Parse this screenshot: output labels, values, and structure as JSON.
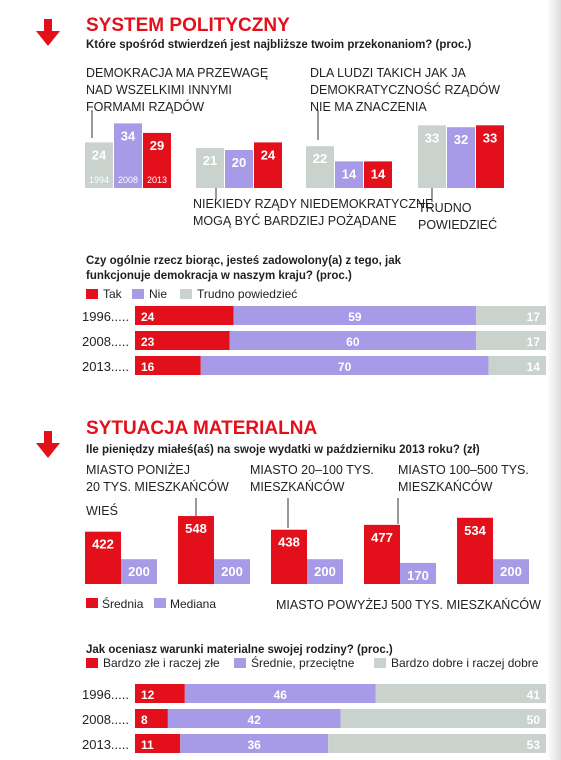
{
  "colors": {
    "red": "#e3101b",
    "purple": "#a79ae6",
    "grey": "#c9d2cd",
    "dark": "#222222"
  },
  "section1": {
    "title": "SYSTEM POLITYCZNY",
    "question": "Które spośród stwierdzeń jest najbliższe twoim przekonaniom? (proc.)",
    "group_labels": [
      [
        "DEMOKRACJA MA PRZEWAGĘ",
        "NAD WSZELKIMI INNYMI",
        "FORMAMI RZĄDÓW"
      ],
      [
        "NIEKIEDY RZĄDY NIEDEMOKRATYCZNE",
        "MOGĄ BYĆ BARDZIEJ POŻĄDANE"
      ],
      [
        "DLA LUDZI TAKICH JAK JA",
        "DEMOKRATYCZNOŚĆ RZĄDÓW",
        "NIE MA ZNACZENIA"
      ],
      [
        "TRUDNO",
        "POWIEDZIEĆ"
      ]
    ]
  },
  "section2": {
    "question": [
      "Czy ogólnie rzecz biorąc, jesteś zadowolony(a) z tego, jak",
      "funkcjonuje demokracja w naszym kraju? (proc.)"
    ],
    "legend": [
      "Tak",
      "Nie",
      "Trudno powiedzieć"
    ]
  },
  "section3": {
    "title": "SYTUACJA MATERIALNA",
    "question": "Ile pieniędzy miałeś(aś) na swoje wydatki w październiku 2013 roku? (zł)",
    "group_labels": [
      [
        "WIEŚ"
      ],
      [
        "MIASTO PONIŻEJ",
        "20 TYS. MIESZKAŃCÓW"
      ],
      [
        "MIASTO 20–100 TYS.",
        "MIESZKAŃCÓW"
      ],
      [
        "MIASTO 100–500 TYS.",
        "MIESZKAŃCÓW"
      ],
      [
        "MIASTO POWYŻEJ 500 TYS. MIESZKAŃCÓW"
      ]
    ],
    "legend": [
      "Średnia",
      "Mediana"
    ]
  },
  "section4": {
    "question": "Jak oceniasz warunki materialne swojej rodziny? (proc.)",
    "legend": [
      "Bardzo złe i raczej złe",
      "Średnie, przeciętne",
      "Bardzo dobre i raczej dobre"
    ]
  },
  "chart_data": [
    {
      "type": "bar",
      "title": "Które spośród stwierdzeń jest najbliższe twoim przekonaniom? (proc.)",
      "categories": [
        "DEMOKRACJA MA PRZEWAGĘ NAD WSZELKIMI INNYMI FORMAMI RZĄDÓW",
        "NIEKIEDY RZĄDY NIEDEMOKRATYCZNE MOGĄ BYĆ BARDZIEJ POŻĄDANE",
        "DLA LUDZI TAKICH JAK JA DEMOKRATYCZNOŚĆ RZĄDÓW NIE MA ZNACZENIA",
        "TRUDNO POWIEDZIEĆ"
      ],
      "series": [
        {
          "name": "1994",
          "values": [
            24,
            21,
            22,
            33
          ]
        },
        {
          "name": "2008",
          "values": [
            34,
            20,
            14,
            32
          ]
        },
        {
          "name": "2013",
          "values": [
            29,
            24,
            14,
            33
          ]
        }
      ],
      "ylim": [
        0,
        40
      ]
    },
    {
      "type": "bar",
      "stacked": true,
      "orientation": "horizontal",
      "title": "Czy ogólnie rzecz biorąc, jesteś zadowolony(a) z tego, jak funkcjonuje demokracja w naszym kraju? (proc.)",
      "categories": [
        "1996",
        "2008",
        "2013"
      ],
      "series": [
        {
          "name": "Tak",
          "values": [
            24,
            23,
            16
          ]
        },
        {
          "name": "Nie",
          "values": [
            59,
            60,
            70
          ]
        },
        {
          "name": "Trudno powiedzieć",
          "values": [
            17,
            17,
            14
          ]
        }
      ],
      "legend": "top-left"
    },
    {
      "type": "bar",
      "title": "Ile pieniędzy miałeś(aś) na swoje wydatki w październiku 2013 roku? (zł)",
      "categories": [
        "WIEŚ",
        "MIASTO PONIŻEJ 20 TYS. MIESZKAŃCÓW",
        "MIASTO 20–100 TYS. MIESZKAŃCÓW",
        "MIASTO 100–500 TYS. MIESZKAŃCÓW",
        "MIASTO POWYŻEJ 500 TYS. MIESZKAŃCÓW"
      ],
      "series": [
        {
          "name": "Średnia",
          "values": [
            422,
            548,
            438,
            477,
            534
          ]
        },
        {
          "name": "Mediana",
          "values": [
            200,
            200,
            200,
            170,
            200
          ]
        }
      ],
      "ylim": [
        0,
        600
      ],
      "legend": "bottom-left"
    },
    {
      "type": "bar",
      "stacked": true,
      "orientation": "horizontal",
      "title": "Jak oceniasz warunki materialne swojej rodziny? (proc.)",
      "categories": [
        "1996",
        "2008",
        "2013"
      ],
      "series": [
        {
          "name": "Bardzo złe i raczej złe",
          "values": [
            12,
            8,
            11
          ]
        },
        {
          "name": "Średnie, przeciętne",
          "values": [
            46,
            42,
            36
          ]
        },
        {
          "name": "Bardzo dobre i raczej dobre",
          "values": [
            41,
            50,
            53
          ]
        }
      ],
      "legend": "top-left"
    }
  ]
}
